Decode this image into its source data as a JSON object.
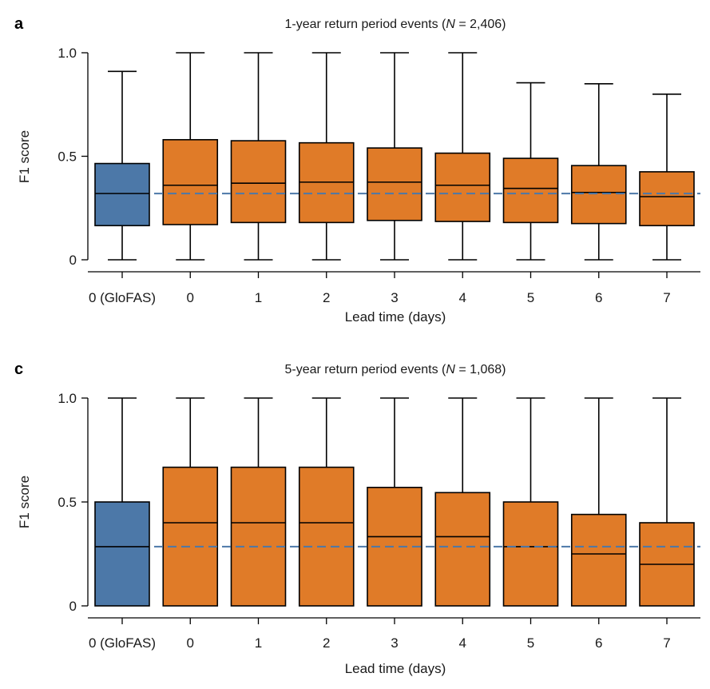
{
  "chart_data": [
    {
      "panel": "a",
      "type": "box",
      "title": "1-year return period events (N = 2,406)",
      "title_parts": [
        "1-year return period events (",
        "N",
        " = 2,406)"
      ],
      "xlabel": "Lead time (days)",
      "ylabel": "F1 score",
      "categories": [
        "0 (GloFAS)",
        "0",
        "1",
        "2",
        "3",
        "4",
        "5",
        "6",
        "7"
      ],
      "ylim": [
        0,
        1.1
      ],
      "yticks": [
        0,
        0.5,
        1.0
      ],
      "ytick_labels": [
        "0",
        "0.5",
        "1.0"
      ],
      "colors": [
        "#4c78a8",
        "#e07b28",
        "#e07b28",
        "#e07b28",
        "#e07b28",
        "#e07b28",
        "#e07b28",
        "#e07b28",
        "#e07b28"
      ],
      "boxes": [
        {
          "min": 0.0,
          "q1": 0.165,
          "median": 0.32,
          "q3": 0.465,
          "max": 0.91
        },
        {
          "min": 0.0,
          "q1": 0.17,
          "median": 0.36,
          "q3": 0.58,
          "max": 1.0
        },
        {
          "min": 0.0,
          "q1": 0.18,
          "median": 0.37,
          "q3": 0.575,
          "max": 1.0
        },
        {
          "min": 0.0,
          "q1": 0.18,
          "median": 0.375,
          "q3": 0.565,
          "max": 1.0
        },
        {
          "min": 0.0,
          "q1": 0.19,
          "median": 0.375,
          "q3": 0.54,
          "max": 1.0
        },
        {
          "min": 0.0,
          "q1": 0.185,
          "median": 0.36,
          "q3": 0.515,
          "max": 1.0
        },
        {
          "min": 0.0,
          "q1": 0.18,
          "median": 0.345,
          "q3": 0.49,
          "max": 0.855
        },
        {
          "min": 0.0,
          "q1": 0.175,
          "median": 0.325,
          "q3": 0.455,
          "max": 0.85
        },
        {
          "min": 0.0,
          "q1": 0.165,
          "median": 0.305,
          "q3": 0.425,
          "max": 0.8
        }
      ],
      "reference_line": {
        "y": 0.32,
        "color": "#4c78a8",
        "style": "dashed"
      },
      "grid": false
    },
    {
      "panel": "c",
      "type": "box",
      "title": "5-year return period events (N = 1,068)",
      "title_parts": [
        "5-year return period events (",
        "N",
        " = 1,068)"
      ],
      "xlabel": "Lead time (days)",
      "ylabel": "F1 score",
      "categories": [
        "0 (GloFAS)",
        "0",
        "1",
        "2",
        "3",
        "4",
        "5",
        "6",
        "7"
      ],
      "ylim": [
        0,
        1.1
      ],
      "yticks": [
        0,
        0.5,
        1.0
      ],
      "ytick_labels": [
        "0",
        "0.5",
        "1.0"
      ],
      "colors": [
        "#4c78a8",
        "#e07b28",
        "#e07b28",
        "#e07b28",
        "#e07b28",
        "#e07b28",
        "#e07b28",
        "#e07b28",
        "#e07b28"
      ],
      "boxes": [
        {
          "min": 0.0,
          "q1": 0.0,
          "median": 0.285,
          "q3": 0.5,
          "max": 1.0
        },
        {
          "min": 0.0,
          "q1": 0.0,
          "median": 0.4,
          "q3": 0.667,
          "max": 1.0
        },
        {
          "min": 0.0,
          "q1": 0.0,
          "median": 0.4,
          "q3": 0.667,
          "max": 1.0
        },
        {
          "min": 0.0,
          "q1": 0.0,
          "median": 0.4,
          "q3": 0.667,
          "max": 1.0
        },
        {
          "min": 0.0,
          "q1": 0.0,
          "median": 0.333,
          "q3": 0.57,
          "max": 1.0
        },
        {
          "min": 0.0,
          "q1": 0.0,
          "median": 0.333,
          "q3": 0.545,
          "max": 1.0
        },
        {
          "min": 0.0,
          "q1": 0.0,
          "median": 0.285,
          "q3": 0.5,
          "max": 1.0
        },
        {
          "min": 0.0,
          "q1": 0.0,
          "median": 0.25,
          "q3": 0.44,
          "max": 1.0
        },
        {
          "min": 0.0,
          "q1": 0.0,
          "median": 0.2,
          "q3": 0.4,
          "max": 1.0
        }
      ],
      "reference_line": {
        "y": 0.285,
        "color": "#4c78a8",
        "style": "dashed"
      },
      "grid": false
    }
  ]
}
